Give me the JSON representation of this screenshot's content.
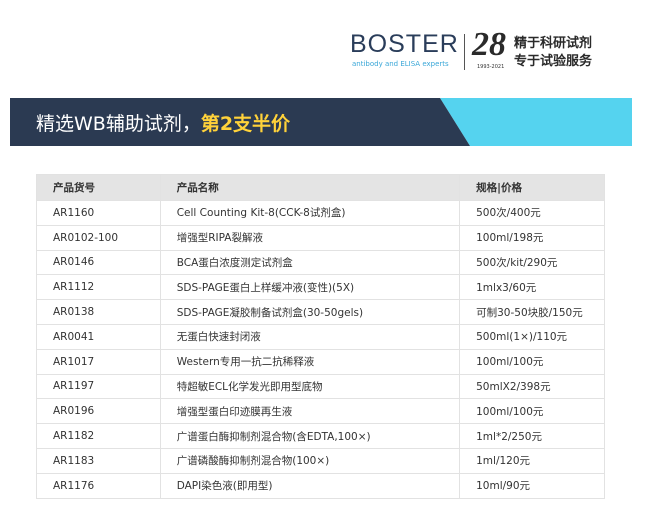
{
  "header": {
    "logo_text": "BOSTER",
    "tagline": "antibody and ELISA experts",
    "anniversary": "28",
    "years": "1993-2021",
    "slogan": [
      "精于科研试剂",
      "专于试验服务"
    ]
  },
  "banner": {
    "text": "精选WB辅助试剂，",
    "highlight": "第2支半价"
  },
  "table": {
    "columns": [
      "产品货号",
      "产品名称",
      "规格|价格"
    ],
    "rows": [
      [
        "AR1160",
        "Cell Counting Kit-8(CCK-8试剂盒)",
        "500次/400元"
      ],
      [
        "AR0102-100",
        "增强型RIPA裂解液",
        "100ml/198元"
      ],
      [
        "AR0146",
        "BCA蛋白浓度测定试剂盒",
        "500次/kit/290元"
      ],
      [
        "AR1112",
        "SDS-PAGE蛋白上样缓冲液(变性)(5X)",
        "1mlx3/60元"
      ],
      [
        "AR0138",
        "SDS-PAGE凝胶制备试剂盒(30-50gels)",
        "可制30-50块胶/150元"
      ],
      [
        "AR0041",
        "无蛋白快速封闭液",
        "500ml(1×)/110元"
      ],
      [
        "AR1017",
        "Western专用一抗二抗稀释液",
        "100ml/100元"
      ],
      [
        "AR1197",
        "特超敏ECL化学发光即用型底物",
        "50mlX2/398元"
      ],
      [
        "AR0196",
        "增强型蛋白印迹膜再生液",
        "100ml/100元"
      ],
      [
        "AR1182",
        "广谱蛋白酶抑制剂混合物(含EDTA,100×)",
        "1ml*2/250元"
      ],
      [
        "AR1183",
        "广谱磷酸酶抑制剂混合物(100×)",
        "1ml/120元"
      ],
      [
        "AR1176",
        "DAPI染色液(即用型)",
        "10ml/90元"
      ]
    ]
  }
}
